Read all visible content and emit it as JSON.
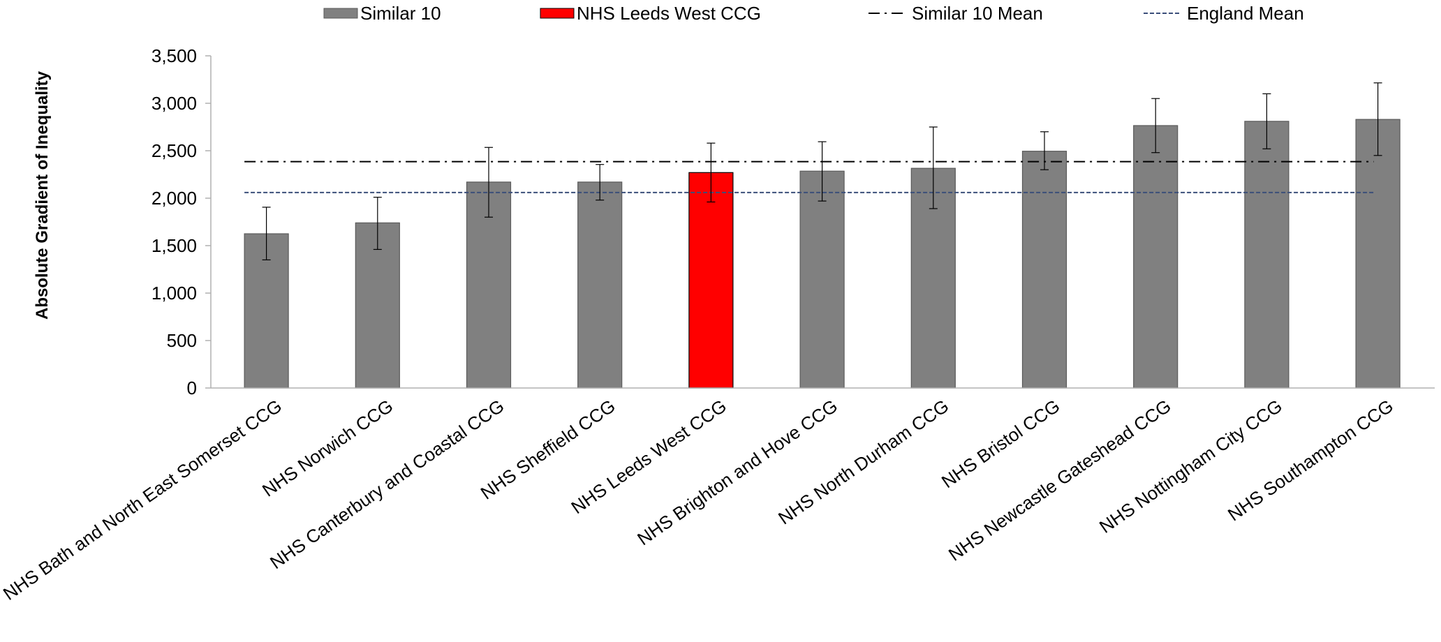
{
  "chart_data": {
    "type": "bar",
    "ylabel": "Absolute Gradient of Inequality",
    "ylim": [
      0,
      3500
    ],
    "yticks": [
      0,
      500,
      1000,
      1500,
      2000,
      2500,
      3000,
      3500
    ],
    "ytick_labels": [
      "0",
      "500",
      "1,000",
      "1,500",
      "2,000",
      "2,500",
      "3,000",
      "3,500"
    ],
    "categories": [
      "NHS Bath and North East Somerset CCG",
      "NHS Norwich CCG",
      "NHS Canterbury and Coastal CCG",
      "NHS Sheffield CCG",
      "NHS Leeds West CCG",
      "NHS Brighton and Hove CCG",
      "NHS North Durham CCG",
      "NHS Bristol CCG",
      "NHS Newcastle Gateshead CCG",
      "NHS Nottingham City CCG",
      "NHS Southampton CCG"
    ],
    "values": [
      1625,
      1740,
      2170,
      2170,
      2270,
      2285,
      2315,
      2495,
      2765,
      2810,
      2830
    ],
    "error_low": [
      1350,
      1460,
      1800,
      1980,
      1960,
      1970,
      1890,
      2300,
      2480,
      2520,
      2450
    ],
    "error_high": [
      1905,
      2010,
      2535,
      2355,
      2580,
      2595,
      2750,
      2700,
      3050,
      3100,
      3215
    ],
    "highlight_index": 4,
    "reference_lines": [
      {
        "name": "Similar 10 Mean",
        "value": 2385,
        "style": "dash-dot",
        "color": "#000000"
      },
      {
        "name": "England Mean",
        "value": 2060,
        "style": "dashed",
        "color": "#3b4f7a"
      }
    ],
    "legend": [
      {
        "label": "Similar 10",
        "kind": "box",
        "color": "#808080"
      },
      {
        "label": "NHS Leeds West CCG",
        "kind": "box",
        "color": "#ff0000"
      },
      {
        "label": "Similar 10 Mean",
        "kind": "dash-dot",
        "color": "#000000"
      },
      {
        "label": "England Mean",
        "kind": "dashed",
        "color": "#3b4f7a"
      }
    ],
    "legend_position": "top",
    "colors": {
      "bar": "#808080",
      "highlight": "#ff0000",
      "axis": "#b0b0b0"
    },
    "grid": false
  }
}
